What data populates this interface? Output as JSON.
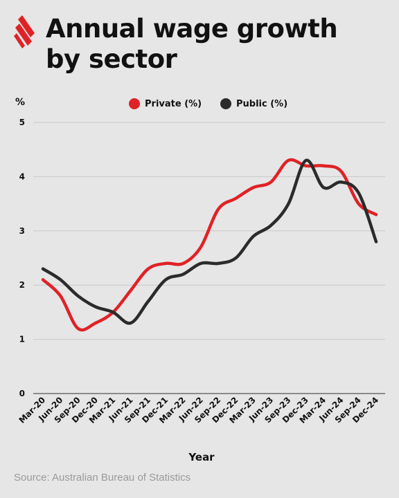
{
  "title_lines": [
    "Annual wage growth",
    "by sector"
  ],
  "source": "Source: Australian Bureau of Statistics",
  "logo_icon": "sbs-logo-icon",
  "colors": {
    "background": "#e6e6e6",
    "private": "#e02226",
    "public": "#2b2b2b",
    "grid": "#c8c8c8",
    "text": "#111111"
  },
  "chart_data": {
    "type": "line",
    "unit_label": "%",
    "xlabel": "Year",
    "ylabel": "",
    "ylim": [
      0,
      5
    ],
    "yticks": [
      "0",
      "1",
      "2",
      "3",
      "4",
      "5"
    ],
    "grid": "horizontal",
    "legend_position": "top-center",
    "categories": [
      "Mar-20",
      "Jun-20",
      "Sep-20",
      "Dec-20",
      "Mar-21",
      "Jun-21",
      "Sep-21",
      "Dec-21",
      "Mar-22",
      "Jun-22",
      "Sep-22",
      "Dec-22",
      "Mar-23",
      "Jun-23",
      "Sep-23",
      "Dec-23",
      "Mar-24",
      "Jun-24",
      "Sep-24",
      "Dec-24"
    ],
    "series": [
      {
        "name": "Private (%)",
        "values": [
          2.1,
          1.8,
          1.2,
          1.3,
          1.5,
          1.9,
          2.3,
          2.4,
          2.4,
          2.7,
          3.4,
          3.6,
          3.8,
          3.9,
          4.3,
          4.2,
          4.2,
          4.1,
          3.5,
          3.3
        ]
      },
      {
        "name": "Public (%)",
        "values": [
          2.3,
          2.1,
          1.8,
          1.6,
          1.5,
          1.3,
          1.7,
          2.1,
          2.2,
          2.4,
          2.4,
          2.5,
          2.9,
          3.1,
          3.5,
          4.3,
          3.8,
          3.9,
          3.7,
          2.8
        ]
      }
    ]
  }
}
